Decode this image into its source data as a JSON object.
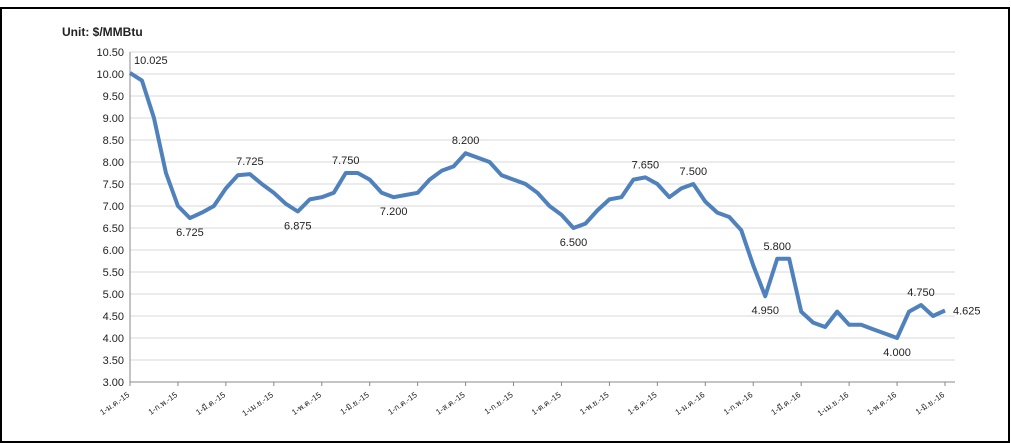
{
  "chart_data": {
    "type": "line",
    "unit_label": "Unit: $/MMBtu",
    "categories": [
      "1-ม.ค.-15",
      null,
      null,
      null,
      "1-ก.พ.-15",
      null,
      null,
      null,
      "1-มี.ค.-15",
      null,
      null,
      null,
      "1-เม.ย.-15",
      null,
      null,
      null,
      "1-พ.ค.-15",
      null,
      null,
      null,
      "1-มิ.ย.-15",
      null,
      null,
      null,
      "1-ก.ค.-15",
      null,
      null,
      null,
      "1-ส.ค.-15",
      null,
      null,
      null,
      "1-ก.ย.-15",
      null,
      null,
      null,
      "1-ต.ค.-15",
      null,
      null,
      null,
      "1-พ.ย.-15",
      null,
      null,
      null,
      "1-ธ.ค.-15",
      null,
      null,
      null,
      "1-ม.ค.-16",
      null,
      null,
      null,
      "1-ก.พ.-16",
      null,
      null,
      null,
      "1-มี.ค.-16",
      null,
      null,
      null,
      "1-เม.ย.-16",
      null,
      null,
      null,
      "1-พ.ค.-16",
      null,
      null,
      null,
      "1-มิ.ย.-16"
    ],
    "series": [
      {
        "color": "#4f81bd",
        "values": [
          10.025,
          9.85,
          9.0,
          7.75,
          7.0,
          6.725,
          6.85,
          7.0,
          7.4,
          7.7,
          7.725,
          7.5,
          7.3,
          7.05,
          6.875,
          7.15,
          7.2,
          7.3,
          7.75,
          7.75,
          7.6,
          7.3,
          7.2,
          7.25,
          7.3,
          7.6,
          7.8,
          7.9,
          8.2,
          8.1,
          8.0,
          7.7,
          7.6,
          7.5,
          7.3,
          7.0,
          6.8,
          6.5,
          6.6,
          6.9,
          7.15,
          7.2,
          7.6,
          7.65,
          7.5,
          7.2,
          7.4,
          7.5,
          7.1,
          6.85,
          6.75,
          6.45,
          5.65,
          4.95,
          5.8,
          5.8,
          4.6,
          4.35,
          4.25,
          4.6,
          4.3,
          4.3,
          4.2,
          4.1,
          4.0,
          4.6,
          4.75,
          4.5,
          4.625
        ],
        "value_labels": [
          "10.025",
          null,
          null,
          null,
          null,
          "6.725",
          null,
          null,
          null,
          null,
          "7.725",
          null,
          null,
          null,
          "6.875",
          null,
          null,
          null,
          "7.750",
          null,
          null,
          null,
          "7.200",
          null,
          null,
          null,
          null,
          null,
          "8.200",
          null,
          null,
          null,
          null,
          null,
          null,
          null,
          null,
          "6.500",
          null,
          null,
          null,
          null,
          null,
          "7.650",
          null,
          null,
          null,
          "7.500",
          null,
          null,
          null,
          null,
          null,
          "4.950",
          "5.800",
          null,
          null,
          null,
          null,
          null,
          null,
          null,
          null,
          null,
          "4.000",
          null,
          "4.750",
          null,
          "4.625"
        ]
      }
    ],
    "ylim": [
      3,
      10.5
    ],
    "yticks": [
      {
        "value": 3,
        "label": "3.00"
      },
      {
        "value": 3.5,
        "label": "3.50"
      },
      {
        "value": 4,
        "label": "4.00"
      },
      {
        "value": 4.5,
        "label": "4.50"
      },
      {
        "value": 5,
        "label": "5.00"
      },
      {
        "value": 5.5,
        "label": "5.50"
      },
      {
        "value": 6,
        "label": "6.00"
      },
      {
        "value": 6.5,
        "label": "6.50"
      },
      {
        "value": 7,
        "label": "7.00"
      },
      {
        "value": 7.5,
        "label": "7.50"
      },
      {
        "value": 8,
        "label": "8.00"
      },
      {
        "value": 8.5,
        "label": "8.50"
      },
      {
        "value": 9,
        "label": "9.00"
      },
      {
        "value": 9.5,
        "label": "9.50"
      },
      {
        "value": 10,
        "label": "10.00"
      },
      {
        "value": 10.5,
        "label": "10.50"
      }
    ],
    "grid": true
  }
}
